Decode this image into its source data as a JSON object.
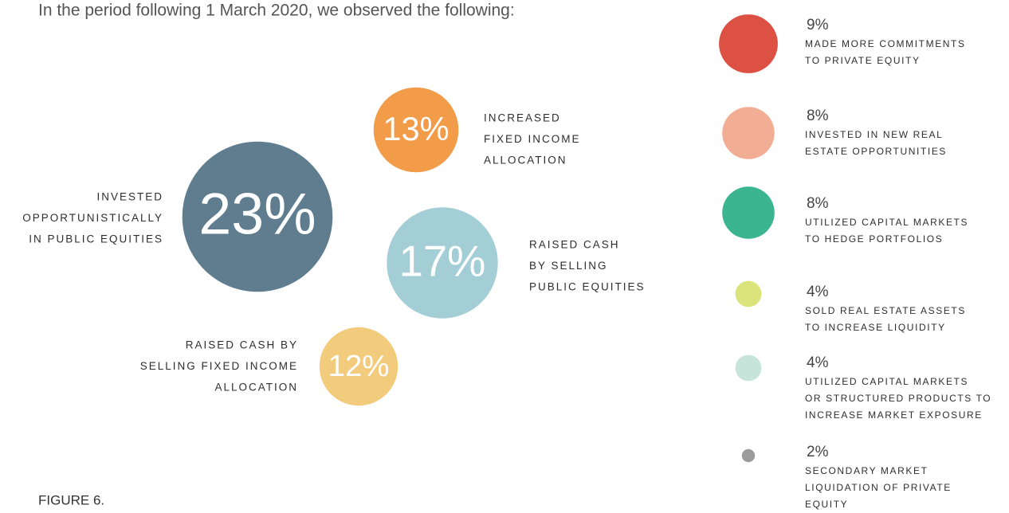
{
  "chart_data": {
    "type": "bubble",
    "intro": "In the period following 1 March 2020, we observed the following:",
    "figure_label": "FIGURE 6.",
    "items": [
      {
        "value": 23,
        "value_label": "23%",
        "color": "#5f7d8f",
        "label_lines": [
          "INVESTED",
          "OPPORTUNISTICALLY",
          "IN PUBLIC EQUITIES"
        ]
      },
      {
        "value": 13,
        "value_label": "13%",
        "color": "#f29c4a",
        "label_lines": [
          "INCREASED",
          "FIXED INCOME",
          "ALLOCATION"
        ]
      },
      {
        "value": 17,
        "value_label": "17%",
        "color": "#a3ced5",
        "label_lines": [
          "RAISED CASH",
          "BY SELLING",
          "PUBLIC EQUITIES"
        ]
      },
      {
        "value": 12,
        "value_label": "12%",
        "color": "#f2cb7d",
        "label_lines": [
          "RAISED CASH BY",
          "SELLING FIXED INCOME",
          "ALLOCATION"
        ]
      },
      {
        "value": 9,
        "value_label": "9%",
        "color": "#dc5143",
        "label_lines": [
          "MADE MORE COMMITMENTS",
          "TO PRIVATE EQUITY"
        ]
      },
      {
        "value": 8,
        "value_label": "8%",
        "color": "#f2ad95",
        "label_lines": [
          "INVESTED IN NEW REAL",
          "ESTATE OPPORTUNITIES"
        ]
      },
      {
        "value": 8,
        "value_label": "8%",
        "color": "#3bb58f",
        "label_lines": [
          "UTILIZED CAPITAL MARKETS",
          "TO HEDGE PORTFOLIOS"
        ]
      },
      {
        "value": 4,
        "value_label": "4%",
        "color": "#dbe37c",
        "label_lines": [
          "SOLD REAL ESTATE ASSETS",
          "TO INCREASE LIQUIDITY"
        ]
      },
      {
        "value": 4,
        "value_label": "4%",
        "color": "#c7e4da",
        "label_lines": [
          "UTILIZED CAPITAL MARKETS",
          "OR STRUCTURED PRODUCTS TO",
          "INCREASE MARKET EXPOSURE"
        ]
      },
      {
        "value": 2,
        "value_label": "2%",
        "color": "#9b9b9b",
        "label_lines": [
          "SECONDARY MARKET",
          "LIQUIDATION OF PRIVATE",
          "EQUITY"
        ]
      }
    ]
  }
}
